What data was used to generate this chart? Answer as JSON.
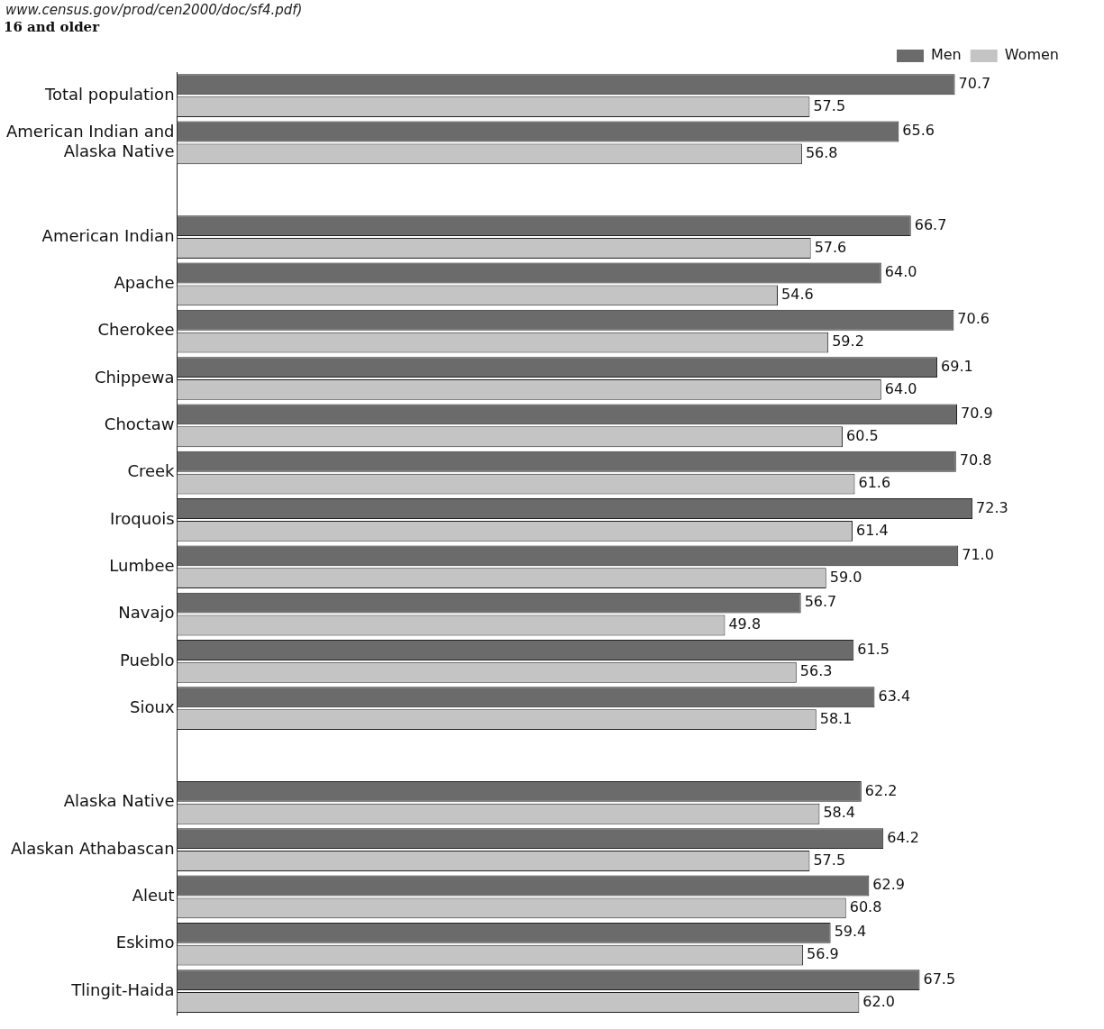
{
  "chart_data": {
    "type": "bar",
    "orientation": "horizontal",
    "subtitle": "16 and older",
    "annotations": [
      "www.census.gov/prod/cen2000/doc/sf4.pdf)"
    ],
    "categories": [
      "Total population",
      "American Indian and Alaska Native",
      null,
      "American Indian",
      "Apache",
      "Cherokee",
      "Chippewa",
      "Choctaw",
      "Creek",
      "Iroquois",
      "Lumbee",
      "Navajo",
      "Pueblo",
      "Sioux",
      null,
      "Alaska Native",
      "Alaskan Athabascan",
      "Aleut",
      "Eskimo",
      "Tlingit-Haida"
    ],
    "series": [
      {
        "name": "Men",
        "color": "#6b6b6b",
        "values": [
          70.7,
          65.6,
          null,
          66.7,
          64.0,
          70.6,
          69.1,
          70.9,
          70.8,
          72.3,
          71.0,
          56.7,
          61.5,
          63.4,
          null,
          62.2,
          64.2,
          62.9,
          59.4,
          67.5
        ],
        "value_labels": [
          "70.7",
          "65.6",
          null,
          "66.7",
          "64.0",
          "70.6",
          "69.1",
          "70.9",
          "70.8",
          "72.3",
          "71.0",
          "56.7",
          "61.5",
          "63.4",
          null,
          "62.2",
          "64.2",
          "62.9",
          "59.4",
          "67.5"
        ]
      },
      {
        "name": "Women",
        "color": "#c4c4c4",
        "values": [
          57.5,
          56.8,
          null,
          57.6,
          54.6,
          59.2,
          64.0,
          60.5,
          61.6,
          61.4,
          59.0,
          49.8,
          56.3,
          58.1,
          null,
          58.4,
          57.5,
          60.8,
          56.9,
          62.0
        ],
        "value_labels": [
          "57.5",
          "56.8",
          null,
          "57.6",
          "54.6",
          "59.2",
          "64.0",
          "60.5",
          "61.6",
          "61.4",
          "59.0",
          "49.8",
          "56.3",
          "58.1",
          null,
          "58.4",
          "57.5",
          "60.8",
          "56.9",
          "62.0"
        ]
      }
    ],
    "legend": "top right"
  }
}
